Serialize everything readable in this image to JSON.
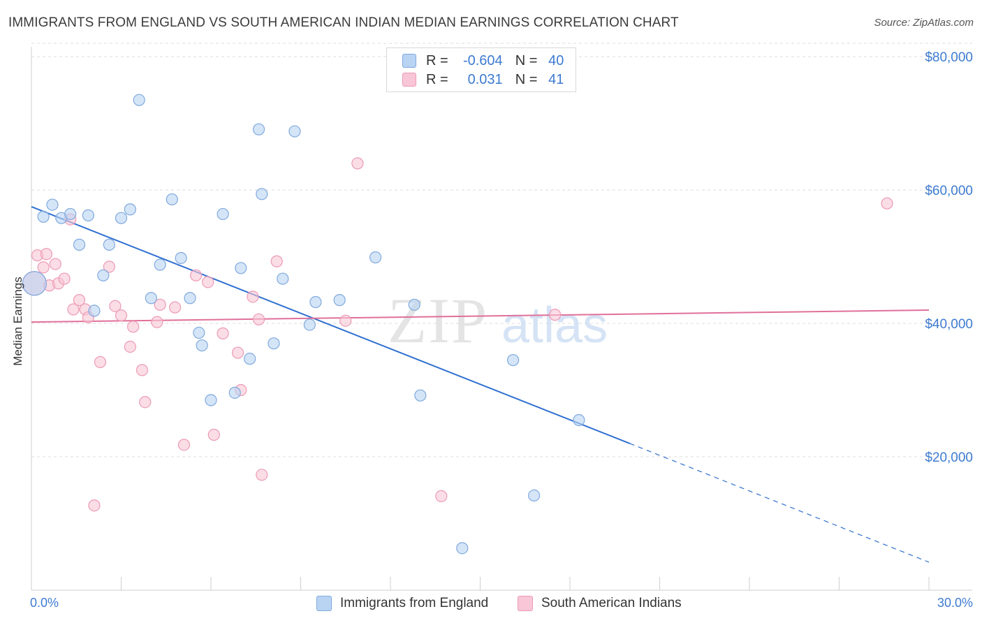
{
  "header": {
    "title": "IMMIGRANTS FROM ENGLAND VS SOUTH AMERICAN INDIAN MEDIAN EARNINGS CORRELATION CHART",
    "source": "Source: ZipAtlas.com"
  },
  "watermark": {
    "zip": "ZIP",
    "atlas": "atlas"
  },
  "colors": {
    "blue_fill": "#b9d3f3",
    "blue_stroke": "#7fa9dd",
    "blue_line": "#2f6fd0",
    "pink_fill": "#f8c6d6",
    "pink_stroke": "#ec9ab5",
    "pink_line": "#e0709a",
    "axis_text": "#3d7bd0",
    "grid": "#dcdcdc"
  },
  "legend": {
    "rows": [
      {
        "r_label": "R =",
        "r_value": "-0.604",
        "n_label": "N =",
        "n_value": "40"
      },
      {
        "r_label": "R =",
        "r_value": "0.031",
        "n_label": "N =",
        "n_value": "41"
      }
    ]
  },
  "chart_data": {
    "type": "scatter",
    "title": "IMMIGRANTS FROM ENGLAND VS SOUTH AMERICAN INDIAN MEDIAN EARNINGS CORRELATION CHART",
    "xlabel": "",
    "ylabel": "Median Earnings",
    "xlim": [
      0,
      30
    ],
    "ylim": [
      0,
      82000
    ],
    "x_tick_labels": [
      "0.0%",
      "30.0%"
    ],
    "y_ticks": [
      20000,
      40000,
      60000,
      80000
    ],
    "y_tick_labels": [
      "$20,000",
      "$40,000",
      "$60,000",
      "$80,000"
    ],
    "series": [
      {
        "name": "Immigrants from England",
        "color": "#b9d3f3",
        "r": -0.604,
        "n": 40,
        "trend": {
          "x0": 0,
          "y0": 57500,
          "x1": 20,
          "y1": 22000,
          "dash_to_x": 30,
          "dash_to_y": 4200
        },
        "points": [
          {
            "x": 0.1,
            "y": 46000,
            "big": true
          },
          {
            "x": 0.4,
            "y": 56000
          },
          {
            "x": 0.7,
            "y": 57800
          },
          {
            "x": 1.0,
            "y": 55800
          },
          {
            "x": 1.3,
            "y": 56400
          },
          {
            "x": 1.9,
            "y": 56200
          },
          {
            "x": 1.6,
            "y": 51800
          },
          {
            "x": 2.6,
            "y": 51800
          },
          {
            "x": 3.0,
            "y": 55800
          },
          {
            "x": 3.3,
            "y": 57100
          },
          {
            "x": 2.4,
            "y": 47200
          },
          {
            "x": 2.1,
            "y": 41900
          },
          {
            "x": 3.6,
            "y": 73500
          },
          {
            "x": 4.0,
            "y": 43800
          },
          {
            "x": 4.3,
            "y": 48800
          },
          {
            "x": 4.7,
            "y": 58600
          },
          {
            "x": 5.0,
            "y": 49800
          },
          {
            "x": 5.3,
            "y": 43800
          },
          {
            "x": 5.6,
            "y": 38600
          },
          {
            "x": 5.7,
            "y": 36700
          },
          {
            "x": 6.0,
            "y": 28500
          },
          {
            "x": 6.4,
            "y": 56400
          },
          {
            "x": 6.8,
            "y": 29600
          },
          {
            "x": 7.0,
            "y": 48300
          },
          {
            "x": 7.3,
            "y": 34700
          },
          {
            "x": 7.6,
            "y": 69100
          },
          {
            "x": 7.7,
            "y": 59400
          },
          {
            "x": 8.1,
            "y": 37000
          },
          {
            "x": 8.4,
            "y": 46700
          },
          {
            "x": 8.8,
            "y": 68800
          },
          {
            "x": 9.3,
            "y": 39800
          },
          {
            "x": 9.5,
            "y": 43200
          },
          {
            "x": 10.3,
            "y": 43500
          },
          {
            "x": 11.5,
            "y": 49900
          },
          {
            "x": 12.8,
            "y": 42800
          },
          {
            "x": 13.0,
            "y": 29200
          },
          {
            "x": 14.4,
            "y": 6300
          },
          {
            "x": 16.1,
            "y": 34500
          },
          {
            "x": 16.8,
            "y": 14200
          },
          {
            "x": 18.3,
            "y": 25500
          }
        ]
      },
      {
        "name": "South American Indians",
        "color": "#f8c6d6",
        "r": 0.031,
        "n": 41,
        "trend": {
          "x0": 0,
          "y0": 40200,
          "x1": 30,
          "y1": 42000
        },
        "points": [
          {
            "x": 0.1,
            "y": 46000,
            "big": true
          },
          {
            "x": 0.2,
            "y": 50200
          },
          {
            "x": 0.4,
            "y": 48400
          },
          {
            "x": 0.5,
            "y": 50400
          },
          {
            "x": 0.6,
            "y": 45700
          },
          {
            "x": 0.8,
            "y": 48900
          },
          {
            "x": 0.9,
            "y": 46000
          },
          {
            "x": 1.1,
            "y": 46700
          },
          {
            "x": 1.3,
            "y": 55600
          },
          {
            "x": 1.4,
            "y": 42100
          },
          {
            "x": 1.6,
            "y": 43500
          },
          {
            "x": 1.8,
            "y": 42100
          },
          {
            "x": 1.9,
            "y": 40900
          },
          {
            "x": 2.1,
            "y": 12700
          },
          {
            "x": 2.3,
            "y": 34200
          },
          {
            "x": 2.6,
            "y": 48500
          },
          {
            "x": 2.8,
            "y": 42600
          },
          {
            "x": 3.0,
            "y": 41200
          },
          {
            "x": 3.3,
            "y": 36500
          },
          {
            "x": 3.4,
            "y": 39500
          },
          {
            "x": 3.7,
            "y": 33000
          },
          {
            "x": 3.8,
            "y": 28200
          },
          {
            "x": 4.2,
            "y": 40200
          },
          {
            "x": 4.3,
            "y": 42800
          },
          {
            "x": 4.8,
            "y": 42400
          },
          {
            "x": 5.1,
            "y": 21800
          },
          {
            "x": 5.5,
            "y": 47200
          },
          {
            "x": 5.9,
            "y": 46200
          },
          {
            "x": 6.1,
            "y": 23300
          },
          {
            "x": 6.4,
            "y": 38500
          },
          {
            "x": 6.9,
            "y": 35600
          },
          {
            "x": 7.0,
            "y": 30000
          },
          {
            "x": 7.4,
            "y": 44000
          },
          {
            "x": 7.6,
            "y": 40600
          },
          {
            "x": 7.7,
            "y": 17300
          },
          {
            "x": 8.2,
            "y": 49300
          },
          {
            "x": 10.5,
            "y": 40400
          },
          {
            "x": 10.9,
            "y": 64000
          },
          {
            "x": 13.7,
            "y": 14100
          },
          {
            "x": 17.5,
            "y": 41300
          },
          {
            "x": 28.6,
            "y": 58000
          }
        ]
      }
    ]
  }
}
